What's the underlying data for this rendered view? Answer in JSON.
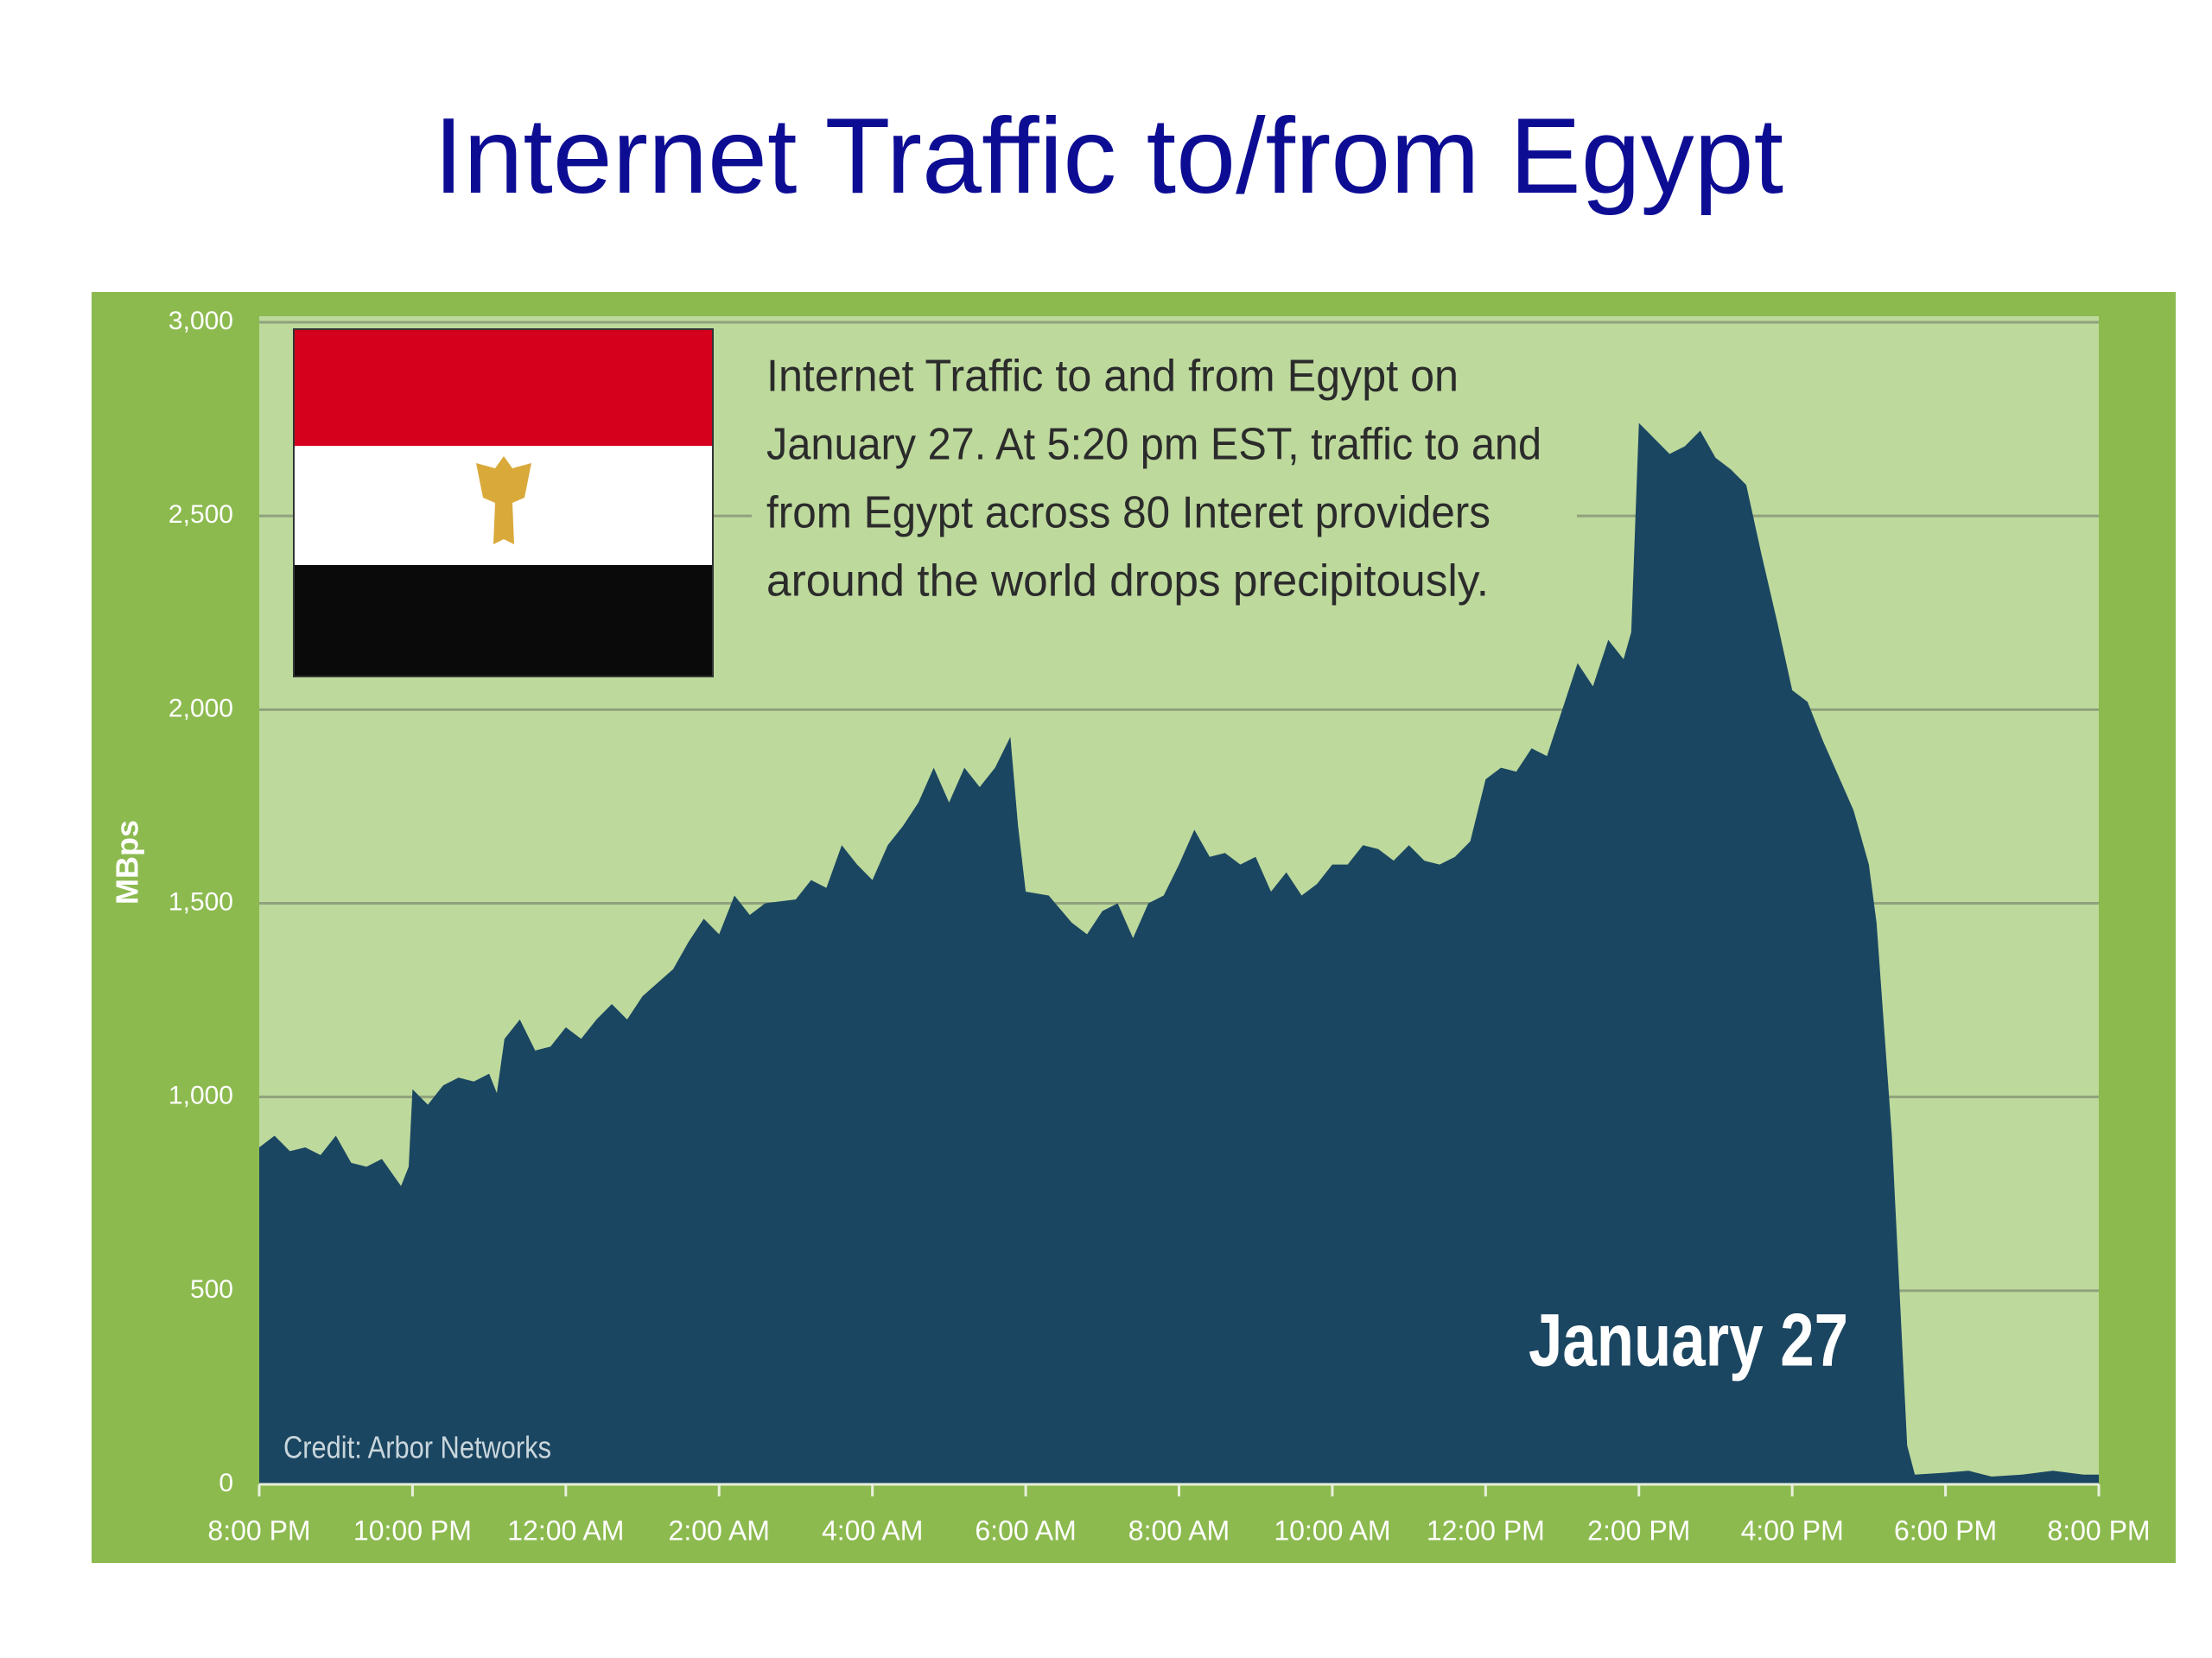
{
  "chart_data": {
    "type": "area",
    "title": "Internet Traffic to/from Egypt",
    "ylabel": "MBps",
    "annotation": [
      "Internet Traffic to and from Egypt on",
      "January 27. At 5:20 pm EST, traffic to and",
      "from Egypt across 80 Interet providers",
      "around the world  drops precipitously."
    ],
    "date_label": "January 27",
    "credit": "Credit: Arbor Networks",
    "color": "#1b4661",
    "grid": true,
    "xlim": [
      0,
      24
    ],
    "xticks": [
      {
        "value": 0,
        "label": "8:00 PM"
      },
      {
        "value": 2,
        "label": "10:00 PM"
      },
      {
        "value": 4,
        "label": "12:00 AM"
      },
      {
        "value": 6,
        "label": "2:00 AM"
      },
      {
        "value": 8,
        "label": "4:00 AM"
      },
      {
        "value": 10,
        "label": "6:00 AM"
      },
      {
        "value": 12,
        "label": "8:00 AM"
      },
      {
        "value": 14,
        "label": "10:00 AM"
      },
      {
        "value": 16,
        "label": "12:00 PM"
      },
      {
        "value": 18,
        "label": "2:00 PM"
      },
      {
        "value": 20,
        "label": "4:00 PM"
      },
      {
        "value": 22,
        "label": "6:00 PM"
      },
      {
        "value": 24,
        "label": "8:00 PM"
      }
    ],
    "ylim": [
      0,
      3000
    ],
    "yticks": [
      0,
      500,
      {
        "value": 1000,
        "label": "1,000"
      },
      {
        "value": 1500,
        "label": "1,500"
      },
      {
        "value": 2000,
        "label": "2,000"
      },
      {
        "value": 2500,
        "label": "2,500"
      },
      {
        "value": 3000,
        "label": "3,000"
      }
    ],
    "x": [
      0,
      0.2,
      0.4,
      0.6,
      0.8,
      1.0,
      1.2,
      1.4,
      1.6,
      1.85,
      1.95,
      2.0,
      2.2,
      2.4,
      2.6,
      2.8,
      3.0,
      3.1,
      3.2,
      3.4,
      3.6,
      3.8,
      4.0,
      4.2,
      4.4,
      4.6,
      4.8,
      5.0,
      5.4,
      5.6,
      5.8,
      6.0,
      6.2,
      6.4,
      6.6,
      7.0,
      7.2,
      7.4,
      7.6,
      7.8,
      8.0,
      8.2,
      8.4,
      8.6,
      8.8,
      9.0,
      9.2,
      9.4,
      9.6,
      9.8,
      9.9,
      10.0,
      10.3,
      10.6,
      10.8,
      11.0,
      11.2,
      11.4,
      11.6,
      11.8,
      12.0,
      12.2,
      12.4,
      12.6,
      12.8,
      13.0,
      13.2,
      13.4,
      13.6,
      13.8,
      14.0,
      14.2,
      14.4,
      14.6,
      14.8,
      15.0,
      15.2,
      15.4,
      15.6,
      15.8,
      16.0,
      16.2,
      16.4,
      16.6,
      16.8,
      17.0,
      17.2,
      17.4,
      17.6,
      17.8,
      17.9,
      18.0,
      18.2,
      18.4,
      18.6,
      18.8,
      19.0,
      19.2,
      19.4,
      19.6,
      19.8,
      20.0,
      20.2,
      20.4,
      20.6,
      20.8,
      21.0,
      21.1,
      21.3,
      21.4,
      21.5,
      21.6,
      22.0,
      22.3,
      22.6,
      23.0,
      23.4,
      23.8,
      24.0
    ],
    "values": [
      870,
      900,
      860,
      870,
      850,
      900,
      830,
      820,
      840,
      770,
      820,
      1020,
      980,
      1030,
      1050,
      1040,
      1060,
      1010,
      1150,
      1200,
      1120,
      1130,
      1180,
      1150,
      1200,
      1240,
      1200,
      1260,
      1330,
      1400,
      1460,
      1420,
      1520,
      1470,
      1500,
      1510,
      1560,
      1540,
      1650,
      1600,
      1560,
      1650,
      1700,
      1760,
      1850,
      1760,
      1850,
      1800,
      1850,
      1930,
      1700,
      1530,
      1520,
      1450,
      1420,
      1480,
      1500,
      1410,
      1500,
      1520,
      1600,
      1690,
      1620,
      1630,
      1600,
      1620,
      1530,
      1580,
      1520,
      1550,
      1600,
      1600,
      1650,
      1640,
      1610,
      1650,
      1610,
      1600,
      1620,
      1660,
      1820,
      1850,
      1840,
      1900,
      1880,
      2000,
      2120,
      2060,
      2180,
      2130,
      2200,
      2740,
      2700,
      2660,
      2680,
      2720,
      2650,
      2620,
      2580,
      2400,
      2230,
      2050,
      2020,
      1920,
      1830,
      1740,
      1600,
      1450,
      900,
      500,
      100,
      25,
      30,
      35,
      20,
      25,
      35,
      25,
      25
    ]
  }
}
